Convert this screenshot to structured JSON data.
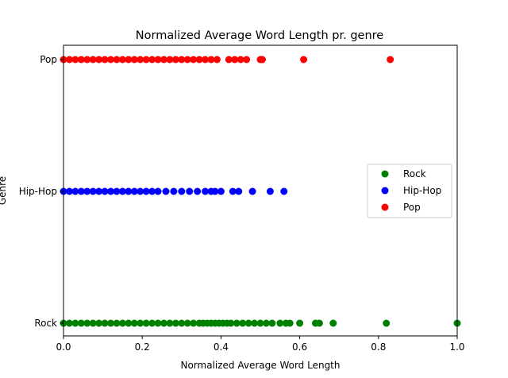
{
  "chart_data": {
    "type": "scatter",
    "title": "Normalized Average Word Length pr. genre",
    "xlabel": "Normalized Average Word Length",
    "ylabel": "Genre",
    "xlim": [
      0,
      1
    ],
    "x_ticks": [
      "0.0",
      "0.2",
      "0.4",
      "0.6",
      "0.8",
      "1.0"
    ],
    "categories": [
      "Rock",
      "Hip-Hop",
      "Pop"
    ],
    "grid": false,
    "legend_position": "center-right",
    "series": [
      {
        "name": "Rock",
        "color": "#008000",
        "category": "Rock",
        "x": [
          0.0,
          0.015,
          0.03,
          0.045,
          0.06,
          0.075,
          0.09,
          0.105,
          0.12,
          0.135,
          0.15,
          0.165,
          0.18,
          0.195,
          0.21,
          0.225,
          0.24,
          0.255,
          0.27,
          0.285,
          0.3,
          0.315,
          0.33,
          0.345,
          0.355,
          0.365,
          0.375,
          0.385,
          0.395,
          0.405,
          0.415,
          0.425,
          0.44,
          0.455,
          0.47,
          0.485,
          0.5,
          0.515,
          0.53,
          0.55,
          0.565,
          0.575,
          0.6,
          0.64,
          0.65,
          0.685,
          0.82,
          1.0
        ]
      },
      {
        "name": "Hip-Hop",
        "color": "#0000ff",
        "category": "Hip-Hop",
        "x": [
          0.0,
          0.015,
          0.03,
          0.045,
          0.06,
          0.075,
          0.09,
          0.105,
          0.12,
          0.135,
          0.15,
          0.165,
          0.18,
          0.195,
          0.21,
          0.225,
          0.24,
          0.26,
          0.28,
          0.3,
          0.32,
          0.34,
          0.36,
          0.375,
          0.385,
          0.4,
          0.43,
          0.445,
          0.48,
          0.525,
          0.56
        ]
      },
      {
        "name": "Pop",
        "color": "#ff0000",
        "category": "Pop",
        "x": [
          0.0,
          0.015,
          0.03,
          0.045,
          0.06,
          0.075,
          0.09,
          0.105,
          0.12,
          0.135,
          0.15,
          0.165,
          0.18,
          0.195,
          0.21,
          0.225,
          0.24,
          0.255,
          0.27,
          0.285,
          0.3,
          0.315,
          0.33,
          0.345,
          0.36,
          0.375,
          0.39,
          0.42,
          0.435,
          0.45,
          0.465,
          0.5,
          0.505,
          0.61,
          0.83
        ]
      }
    ]
  }
}
